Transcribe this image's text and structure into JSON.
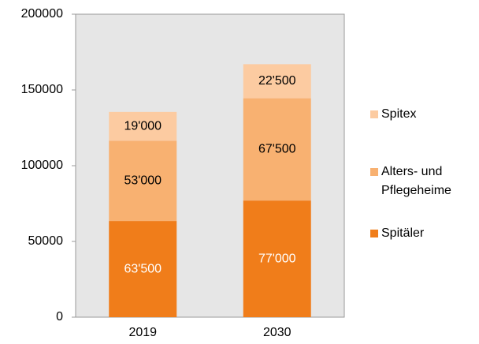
{
  "chart_data": {
    "type": "stacked_bar",
    "categories": [
      "2019",
      "2030"
    ],
    "series": [
      {
        "name": "Spitäler",
        "color": "#f07d1a",
        "values": [
          63500,
          77000
        ],
        "value_labels": [
          "63'500",
          "77'000"
        ]
      },
      {
        "name": "Alters- und Pflegeheime",
        "color": "#f8b171",
        "values": [
          53000,
          67500
        ],
        "value_labels": [
          "53'000",
          "67'500"
        ]
      },
      {
        "name": "Spitex",
        "color": "#fccba1",
        "values": [
          19000,
          22500
        ],
        "value_labels": [
          "19'000",
          "22'500"
        ]
      }
    ],
    "ylim": [
      0,
      200000
    ],
    "yticks": [
      0,
      50000,
      100000,
      150000,
      200000
    ],
    "legend": "right"
  }
}
